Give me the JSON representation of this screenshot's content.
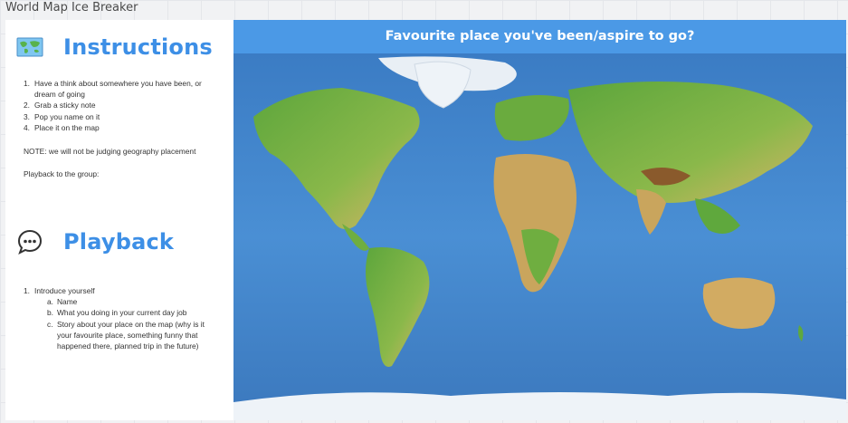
{
  "board": {
    "title": "World Map Ice Breaker"
  },
  "instructions": {
    "title": "Instructions",
    "steps": [
      "Have a think about somewhere you have been, or dream of going",
      "Grab a sticky note",
      "Pop you name on it",
      "Place it on the map"
    ],
    "note": "NOTE: we will not be judging geography placement",
    "playback_intro": "Playback to the group:"
  },
  "playback": {
    "title": "Playback",
    "item1": "Introduce yourself",
    "sub": [
      "Name",
      "What you doing in your current day job",
      "Story about your place on the map (why is it your favourite place, something funny that happened there, planned trip in the future)"
    ]
  },
  "map": {
    "title": "Favourite place you've been/aspire to go?",
    "colors": {
      "ocean": "#3f7fc7",
      "land_green": "#5fa83d",
      "land_tan": "#d6b46a",
      "ice": "#eef3f8"
    }
  }
}
